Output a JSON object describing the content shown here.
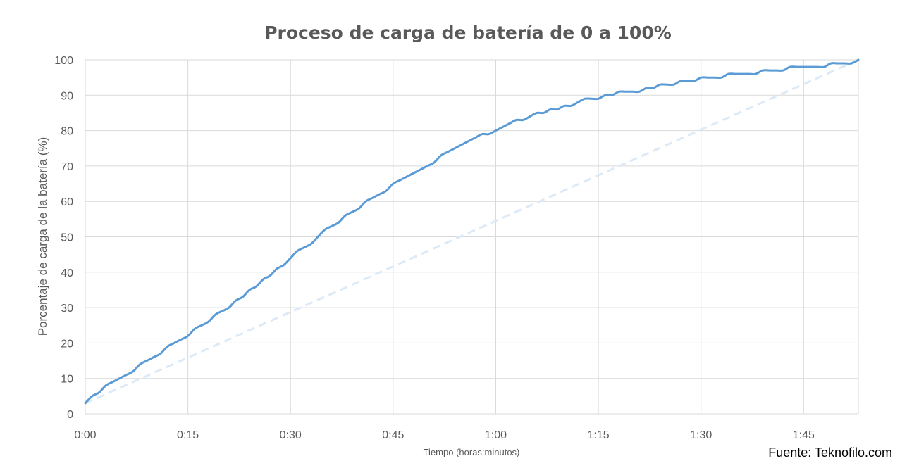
{
  "chart_data": {
    "type": "line",
    "title": "Proceso de carga de batería de 0 a 100%",
    "xlabel": "Tiempo (horas:minutos)",
    "ylabel": "Porcentaje de carga de la batería (%)",
    "source": "Fuente: Teknofilo.com",
    "x_ticks": [
      "0:00",
      "0:15",
      "0:30",
      "0:45",
      "1:00",
      "1:15",
      "1:30",
      "1:45"
    ],
    "x_tick_minutes": [
      0,
      15,
      30,
      45,
      60,
      75,
      90,
      105
    ],
    "xlim": [
      0,
      113
    ],
    "ylim": [
      0,
      100
    ],
    "y_ticks": [
      0,
      10,
      20,
      30,
      40,
      50,
      60,
      70,
      80,
      90,
      100
    ],
    "grid": true,
    "legend": "none",
    "colors": {
      "main": "#5b9bd5",
      "reference": "#dce9f6",
      "grid": "#d9d9d9",
      "text": "#595959"
    },
    "series": [
      {
        "style": "solid",
        "x": [
          0,
          1,
          2,
          3,
          4,
          5,
          6,
          7,
          8,
          9,
          10,
          11,
          12,
          13,
          14,
          15,
          16,
          17,
          18,
          19,
          20,
          21,
          22,
          23,
          24,
          25,
          26,
          27,
          28,
          29,
          30,
          31,
          32,
          33,
          34,
          35,
          36,
          37,
          38,
          39,
          40,
          41,
          42,
          43,
          44,
          45,
          46,
          47,
          48,
          49,
          50,
          51,
          52,
          53,
          54,
          55,
          56,
          57,
          58,
          59,
          60,
          61,
          62,
          63,
          64,
          65,
          66,
          67,
          68,
          69,
          70,
          71,
          72,
          73,
          74,
          75,
          76,
          77,
          78,
          79,
          80,
          81,
          82,
          83,
          84,
          85,
          86,
          87,
          88,
          89,
          90,
          91,
          92,
          93,
          94,
          95,
          96,
          97,
          98,
          99,
          100,
          101,
          102,
          103,
          104,
          105,
          106,
          107,
          108,
          109,
          110,
          111,
          112,
          113
        ],
        "values": [
          3,
          5,
          6,
          8,
          9,
          10,
          11,
          12,
          14,
          15,
          16,
          17,
          19,
          20,
          21,
          22,
          24,
          25,
          26,
          28,
          29,
          30,
          32,
          33,
          35,
          36,
          38,
          39,
          41,
          42,
          44,
          46,
          47,
          48,
          50,
          52,
          53,
          54,
          56,
          57,
          58,
          60,
          61,
          62,
          63,
          65,
          66,
          67,
          68,
          69,
          70,
          71,
          73,
          74,
          75,
          76,
          77,
          78,
          79,
          79,
          80,
          81,
          82,
          83,
          83,
          84,
          85,
          85,
          86,
          86,
          87,
          87,
          88,
          89,
          89,
          89,
          90,
          90,
          91,
          91,
          91,
          91,
          92,
          92,
          93,
          93,
          93,
          94,
          94,
          94,
          95,
          95,
          95,
          95,
          96,
          96,
          96,
          96,
          96,
          97,
          97,
          97,
          97,
          98,
          98,
          98,
          98,
          98,
          98,
          99,
          99,
          99,
          99,
          100
        ]
      },
      {
        "style": "dashed",
        "x": [
          0,
          113
        ],
        "values": [
          3,
          100
        ]
      }
    ]
  }
}
